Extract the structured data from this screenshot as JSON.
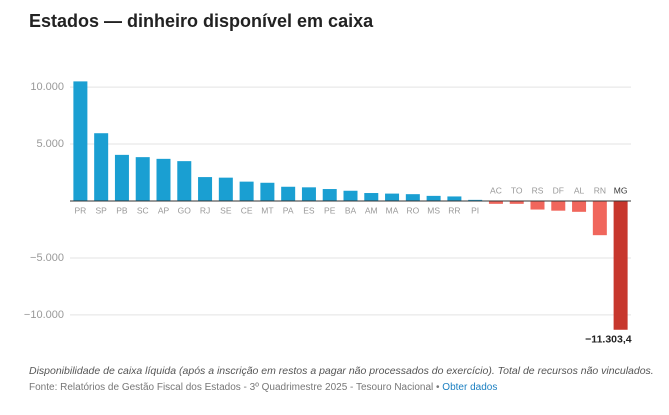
{
  "chart_data": {
    "type": "bar",
    "title": "Estados — dinheiro disponível em caixa",
    "categories": [
      "PR",
      "SP",
      "PB",
      "SC",
      "AP",
      "GO",
      "RJ",
      "SE",
      "CE",
      "MT",
      "PA",
      "ES",
      "PE",
      "BA",
      "AM",
      "MA",
      "RO",
      "MS",
      "RR",
      "PI",
      "AC",
      "TO",
      "RS",
      "DF",
      "AL",
      "RN",
      "MG"
    ],
    "values": [
      10500,
      5950,
      4050,
      3850,
      3700,
      3500,
      2100,
      2050,
      1700,
      1600,
      1250,
      1200,
      1050,
      900,
      700,
      650,
      600,
      450,
      400,
      100,
      -250,
      -250,
      -750,
      -850,
      -950,
      -3000,
      -11303.4
    ],
    "value_labels": [
      null,
      null,
      null,
      null,
      null,
      null,
      null,
      null,
      null,
      null,
      null,
      null,
      null,
      null,
      null,
      null,
      null,
      null,
      null,
      null,
      null,
      null,
      null,
      null,
      null,
      null,
      "−11.303,4"
    ],
    "colors": [
      "#1a9fd2",
      "#1a9fd2",
      "#1a9fd2",
      "#1a9fd2",
      "#1a9fd2",
      "#1a9fd2",
      "#1a9fd2",
      "#1a9fd2",
      "#1a9fd2",
      "#1a9fd2",
      "#1a9fd2",
      "#1a9fd2",
      "#1a9fd2",
      "#1a9fd2",
      "#1a9fd2",
      "#1a9fd2",
      "#1a9fd2",
      "#1a9fd2",
      "#1a9fd2",
      "#1a9fd2",
      "#f0665c",
      "#f0665c",
      "#f0665c",
      "#f0665c",
      "#f0665c",
      "#f0665c",
      "#c7372d"
    ],
    "ylim": [
      -11500,
      11500
    ],
    "yticks": [
      {
        "value": 10000,
        "label": "10.000"
      },
      {
        "value": 5000,
        "label": "5.000"
      },
      {
        "value": -5000,
        "label": "−5.000"
      },
      {
        "value": -10000,
        "label": "−10.000"
      }
    ],
    "grid": true,
    "note": "Disponibilidade de caixa líquida (após a inscrição em restos a pagar não processados do exercício). Total de recursos não vinculados.",
    "source": "Fonte: Relatórios de Gestão Fiscal dos Estados - 3º Quadrimestre 2025 - Tesouro Nacional",
    "source_link": "Obter dados"
  }
}
